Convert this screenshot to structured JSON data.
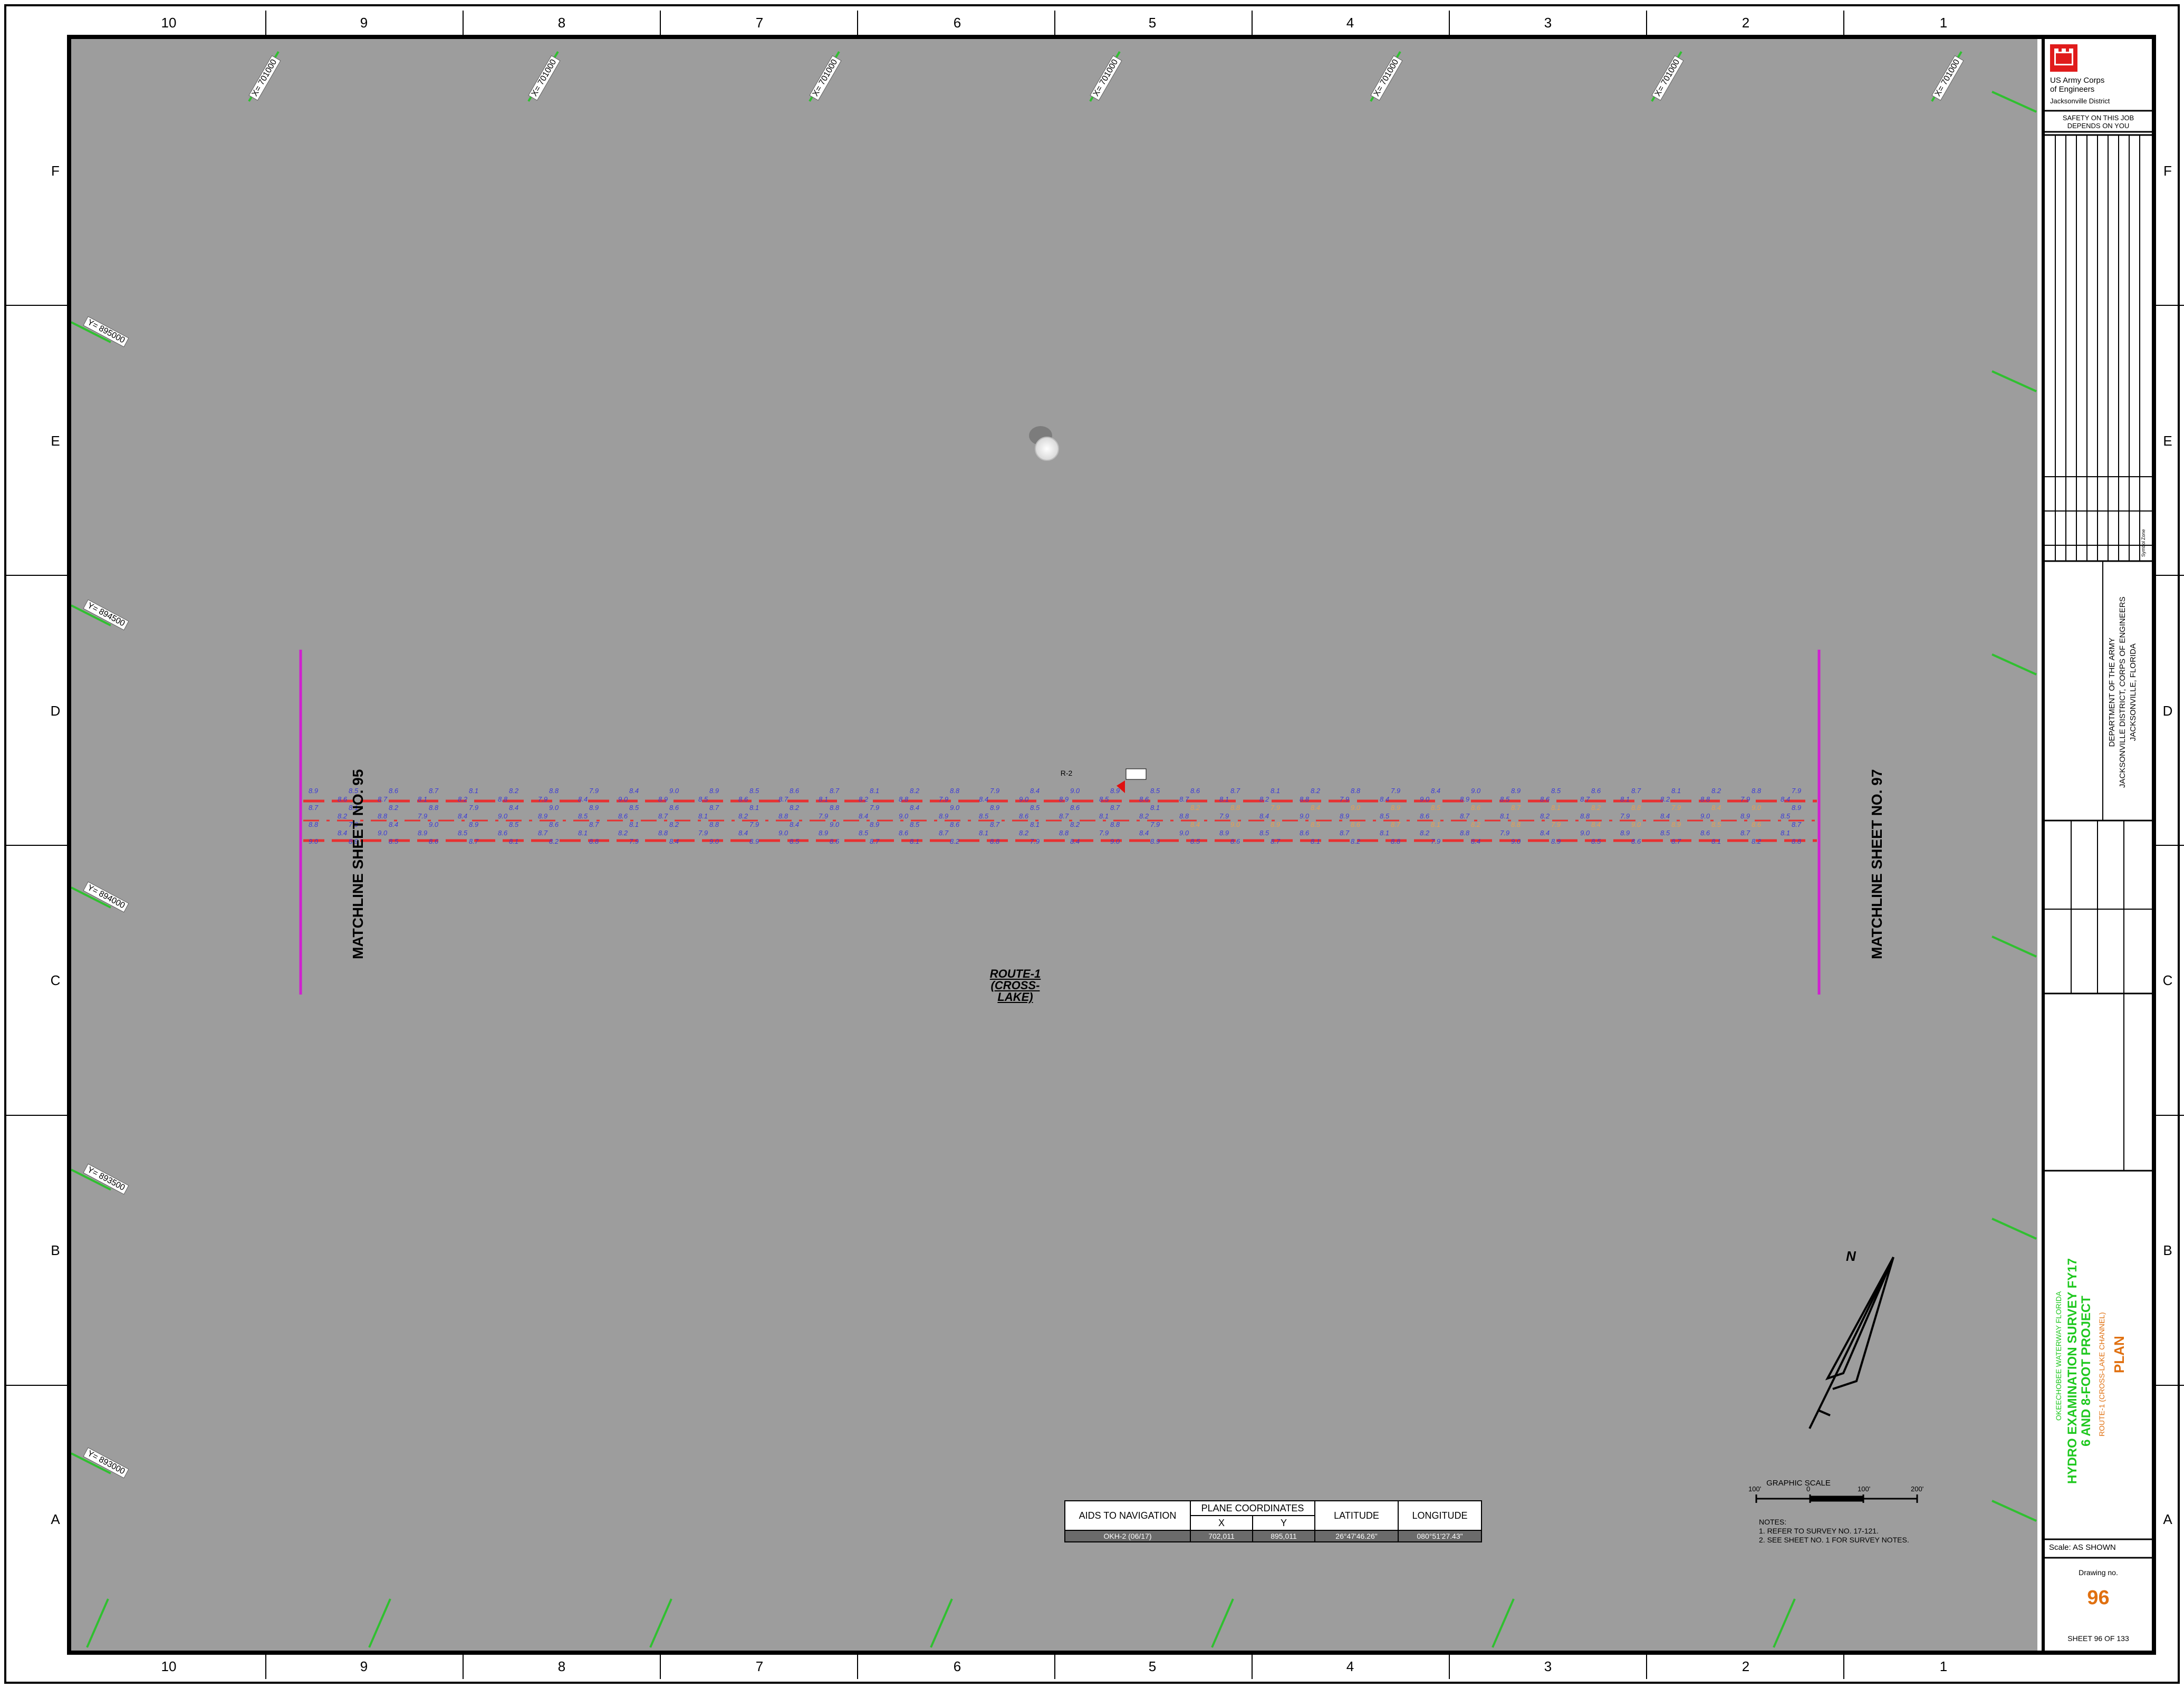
{
  "zone_numbers": [
    "10",
    "9",
    "8",
    "7",
    "6",
    "5",
    "4",
    "3",
    "2",
    "1"
  ],
  "zone_letters": [
    "F",
    "E",
    "D",
    "C",
    "B",
    "A"
  ],
  "x_grid_label": "X= 701000",
  "y_grid_labels": [
    "Y= 895000",
    "Y= 894500",
    "Y= 894000",
    "Y= 893500",
    "Y= 893000"
  ],
  "matchline_left": "MATCHLINE SHEET NO. 95",
  "matchline_right": "MATCHLINE SHEET NO. 97",
  "route_label": [
    "ROUTE-1",
    "(CROSS-LAKE)"
  ],
  "aid_marker": "R-2",
  "aids_table": {
    "headers": [
      "AIDS TO NAVIGATION",
      "PLANE COORDINATES",
      "LATITUDE",
      "LONGITUDE"
    ],
    "subheaders": [
      "X",
      "Y"
    ],
    "row": [
      "OKH-2 (06/17)",
      "702,011",
      "895,011",
      "26°47'46.26\"",
      "080°51'27.43\""
    ]
  },
  "scale_title": "GRAPHIC SCALE",
  "scale_ticks": [
    "100'",
    "0",
    "100'",
    "200'"
  ],
  "notes": [
    "NOTES:",
    "1. REFER TO SURVEY NO. 17-121.",
    "2. SEE SHEET NO. 1 FOR SURVEY NOTES."
  ],
  "north": "N",
  "title_block": {
    "agency": [
      "US Army Corps",
      "of Engineers"
    ],
    "district": "Jacksonville District",
    "safety": [
      "SAFETY ON THIS JOB",
      "DEPENDS ON YOU"
    ],
    "dept": [
      "DEPARTMENT OF THE ARMY",
      "JACKSONVILLE DISTRICT, CORPS OF ENGINEERS",
      "JACKSONVILLE, FLORIDA"
    ],
    "project_small": "OKEECHOBEE WATERWAY  FLORIDA",
    "project_title": [
      "HYDRO EXAMINATION SURVEY FY17",
      "6 AND 8-FOOT PROJECT"
    ],
    "project_route": "ROUTE-1 (CROSS-LAKE CHANNEL)",
    "plan": "PLAN",
    "scale": "Scale:  AS SHOWN",
    "drawing_label": "Drawing no.",
    "drawing_no": "96",
    "sheet": "SHEET  96  OF  133",
    "revisions": [
      "Zone",
      "Symbol",
      "No."
    ]
  },
  "colors": {
    "background": "#9d9d9d",
    "channel": "#e83030",
    "soundings": "#3a3ad8",
    "soundings_shoal": "#e8a050",
    "matchline": "#d020d0",
    "grid": "#30c030",
    "accent": "#e07010",
    "title": "#1ec81e"
  }
}
